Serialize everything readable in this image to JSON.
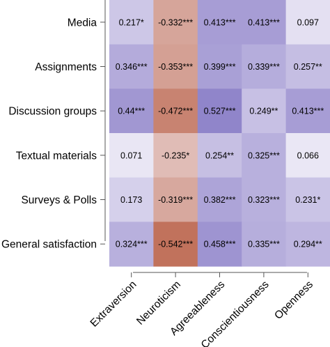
{
  "chart_data": {
    "type": "heatmap",
    "rows": [
      "Media",
      "Assignments",
      "Discussion groups",
      "Textual materials",
      "Surveys & Polls",
      "General satisfaction"
    ],
    "columns": [
      "Extraversion",
      "Neuroticism",
      "Agreeableness",
      "Conscientiousness",
      "Openness"
    ],
    "values": [
      [
        0.217,
        -0.332,
        0.413,
        0.413,
        0.097
      ],
      [
        0.346,
        -0.353,
        0.399,
        0.339,
        0.257
      ],
      [
        0.44,
        -0.472,
        0.527,
        0.249,
        0.413
      ],
      [
        0.071,
        -0.235,
        0.254,
        0.325,
        0.066
      ],
      [
        0.173,
        -0.319,
        0.382,
        0.323,
        0.231
      ],
      [
        0.324,
        -0.542,
        0.458,
        0.335,
        0.294
      ]
    ],
    "labels": [
      [
        "0.217*",
        "-0.332***",
        "0.413***",
        "0.413***",
        "0.097"
      ],
      [
        "0.346***",
        "-0.353***",
        "0.399***",
        "0.339***",
        "0.257**"
      ],
      [
        "0.44***",
        "-0.472***",
        "0.527***",
        "0.249**",
        "0.413***"
      ],
      [
        "0.071",
        "-0.235*",
        "0.254**",
        "0.325***",
        "0.066"
      ],
      [
        "0.173",
        "-0.319***",
        "0.382***",
        "0.323***",
        "0.231*"
      ],
      [
        "0.324***",
        "-0.542***",
        "0.458***",
        "0.335***",
        "0.294**"
      ]
    ],
    "color_scale": {
      "negative": "#c0705a",
      "zero": "#f7f5fb",
      "positive": "#8c80c8",
      "max_abs": 0.55
    }
  }
}
